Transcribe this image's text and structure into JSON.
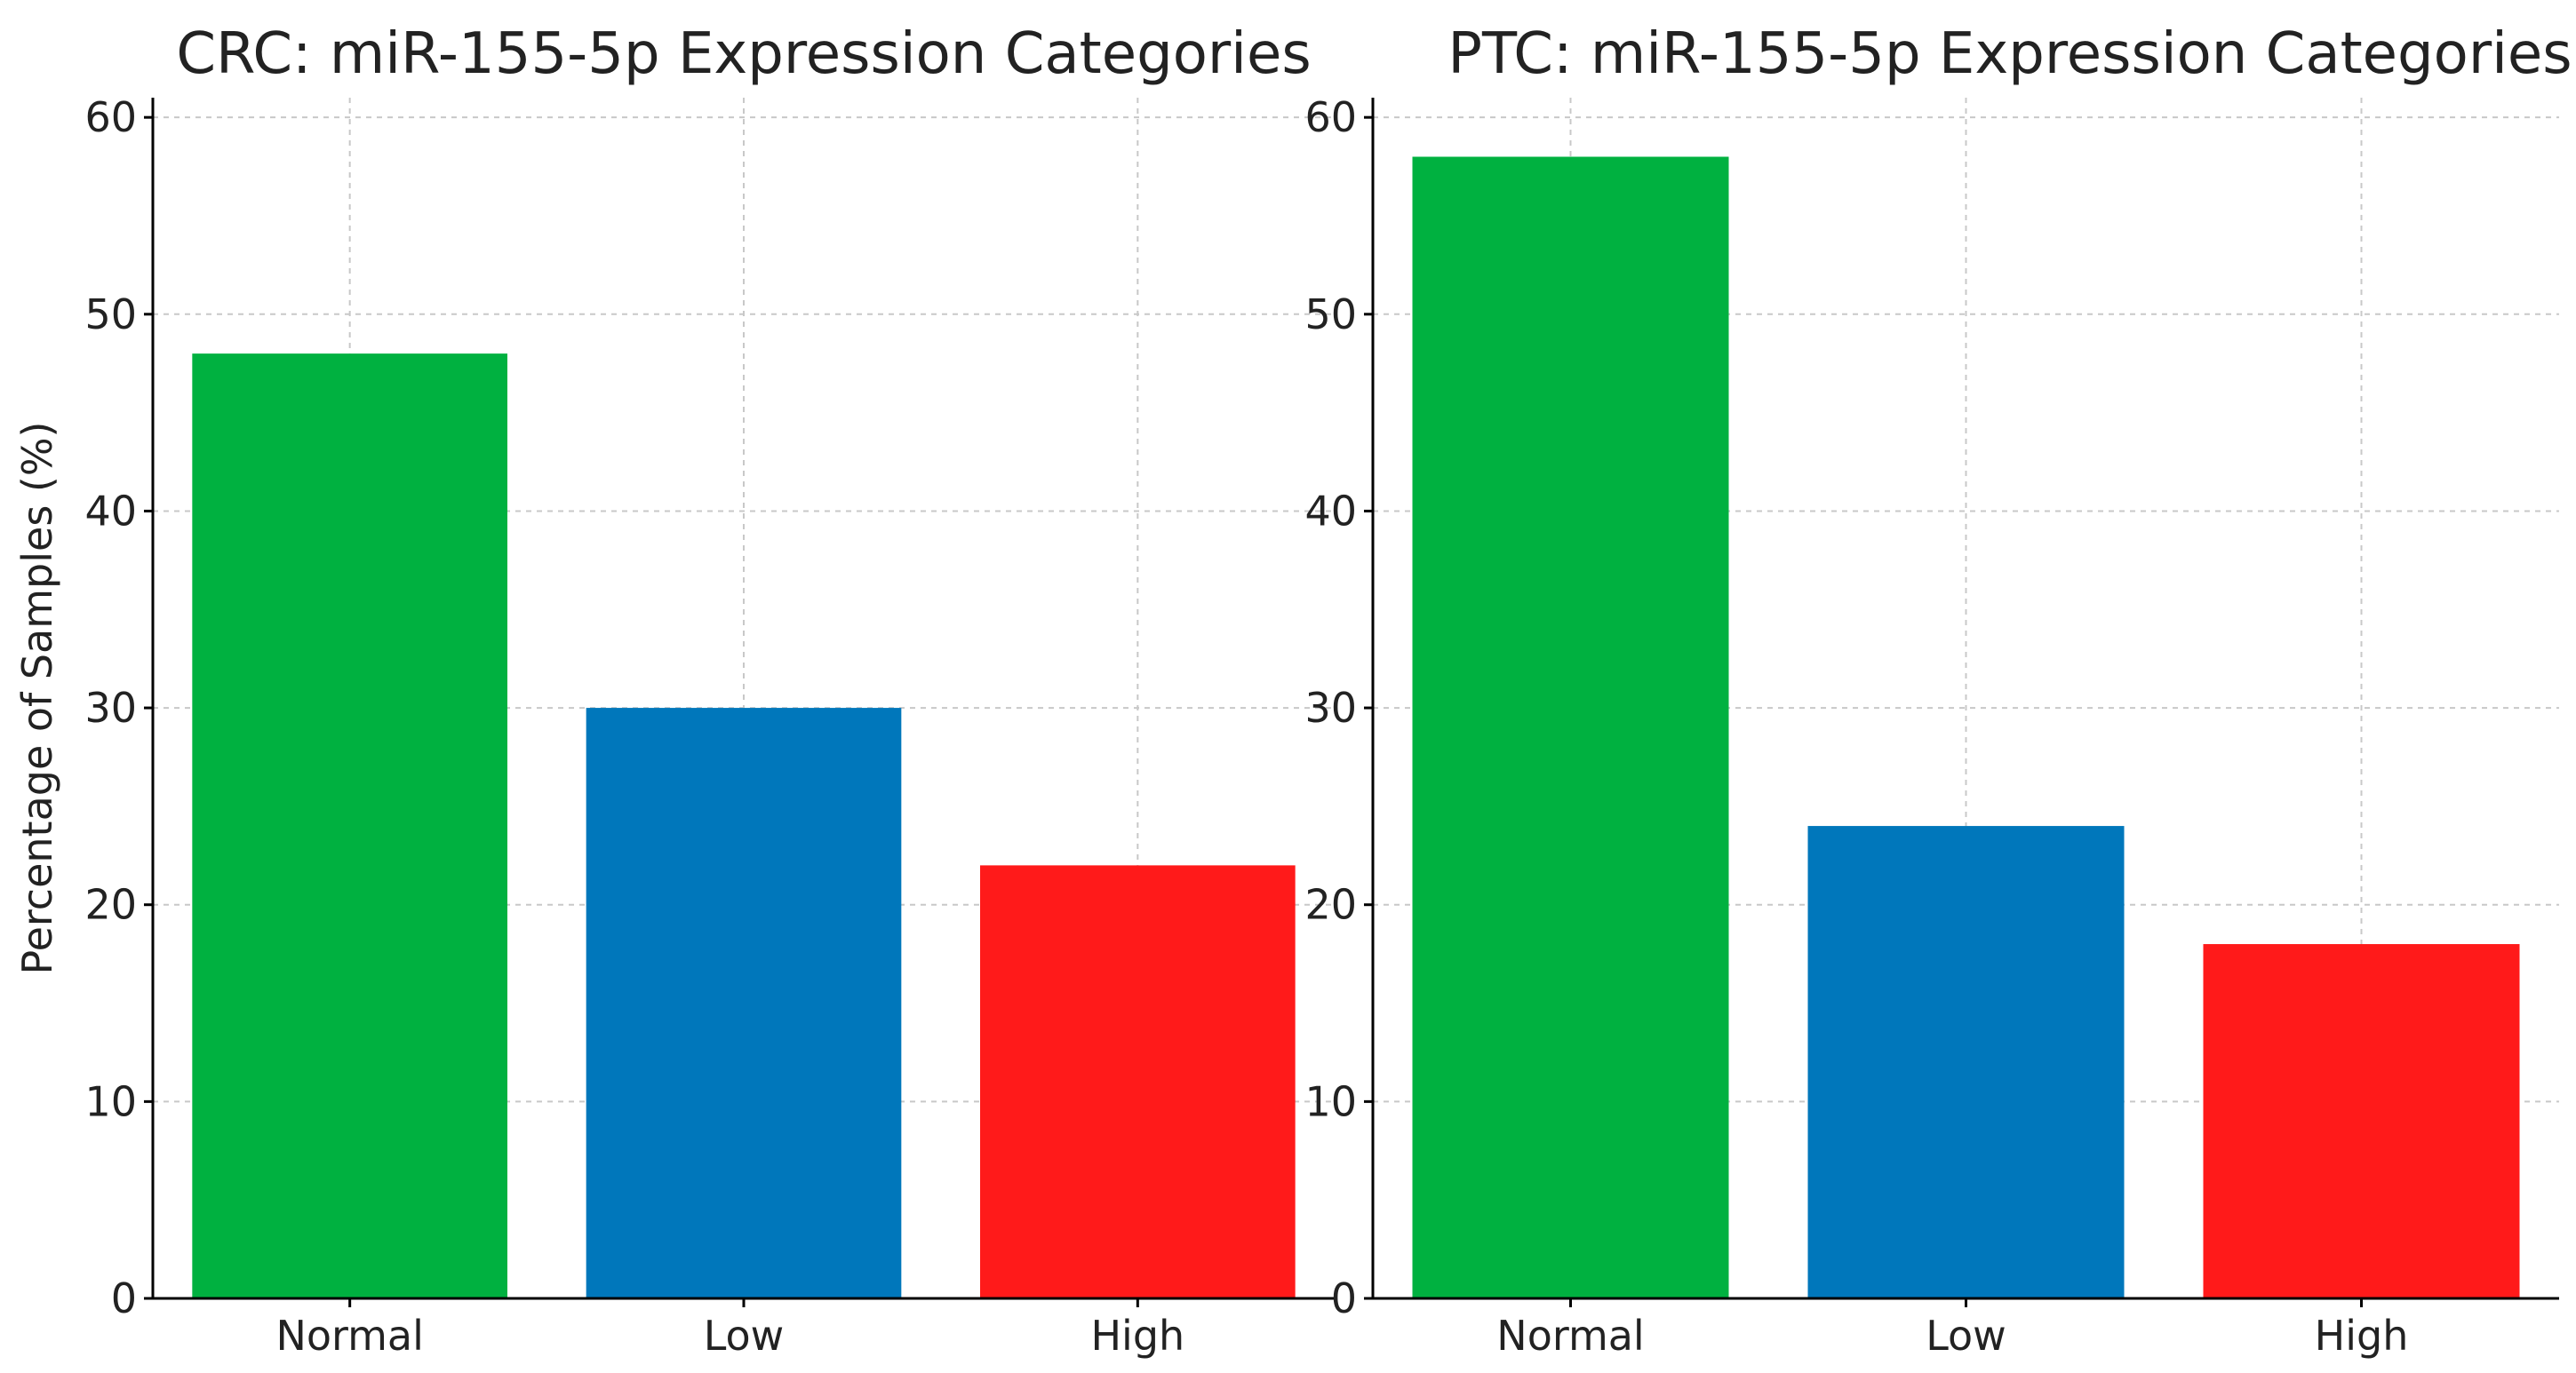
{
  "chart_data": [
    {
      "type": "bar",
      "title": "CRC: miR-155-5p Expression Categories",
      "categories": [
        "Normal",
        "Low",
        "High"
      ],
      "values": [
        48,
        30,
        22
      ],
      "colors": [
        "#00b140",
        "#0077bb",
        "#ff1a1a"
      ],
      "xlabel": "",
      "ylabel": "Percentage of Samples (%)",
      "ylim": [
        0,
        61
      ],
      "yticks": [
        0,
        10,
        20,
        30,
        40,
        50,
        60
      ],
      "grid": true
    },
    {
      "type": "bar",
      "title": "PTC: miR-155-5p Expression Categories",
      "categories": [
        "Normal",
        "Low",
        "High"
      ],
      "values": [
        58,
        24,
        18
      ],
      "colors": [
        "#00b140",
        "#0077bb",
        "#ff1a1a"
      ],
      "xlabel": "",
      "ylabel": "",
      "ylim": [
        0,
        61
      ],
      "yticks": [
        0,
        10,
        20,
        30,
        40,
        50,
        60
      ],
      "grid": true
    }
  ]
}
